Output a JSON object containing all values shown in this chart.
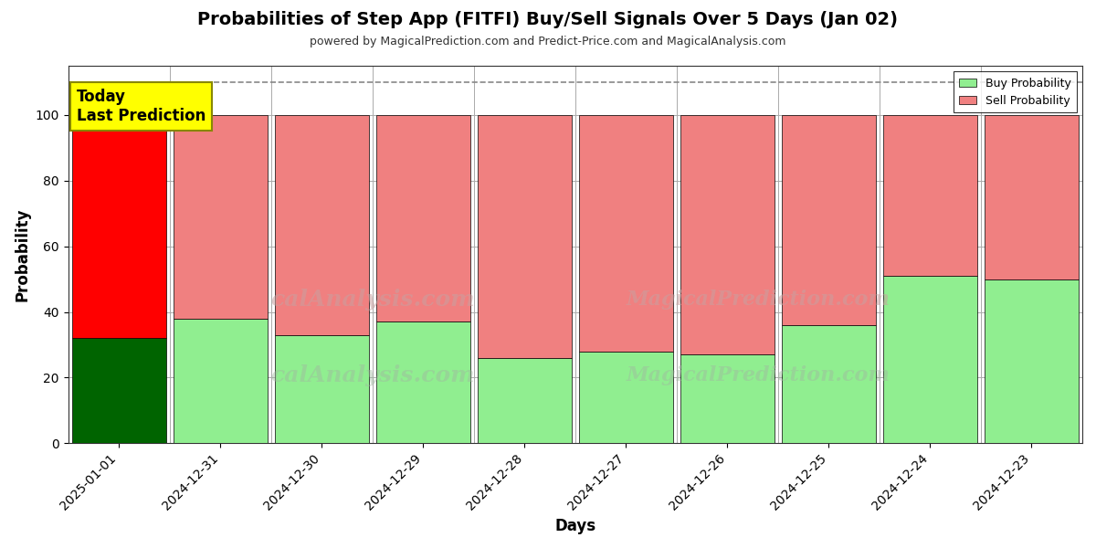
{
  "title": "Probabilities of Step App (FITFI) Buy/Sell Signals Over 5 Days (Jan 02)",
  "subtitle": "powered by MagicalPrediction.com and Predict-Price.com and MagicalAnalysis.com",
  "xlabel": "Days",
  "ylabel": "Probability",
  "categories": [
    "2025-01-01",
    "2024-12-31",
    "2024-12-30",
    "2024-12-29",
    "2024-12-28",
    "2024-12-27",
    "2024-12-26",
    "2024-12-25",
    "2024-12-24",
    "2024-12-23"
  ],
  "buy_values": [
    32,
    38,
    33,
    37,
    26,
    28,
    27,
    36,
    51,
    50
  ],
  "sell_values": [
    68,
    62,
    67,
    63,
    74,
    72,
    73,
    64,
    49,
    50
  ],
  "buy_colors": [
    "#006400",
    "#90EE90",
    "#90EE90",
    "#90EE90",
    "#90EE90",
    "#90EE90",
    "#90EE90",
    "#90EE90",
    "#90EE90",
    "#90EE90"
  ],
  "sell_colors": [
    "#FF0000",
    "#F08080",
    "#F08080",
    "#F08080",
    "#F08080",
    "#F08080",
    "#F08080",
    "#F08080",
    "#F08080",
    "#F08080"
  ],
  "today_label_line1": "Today",
  "today_label_line2": "Last Prediction",
  "today_label_bg": "#FFFF00",
  "dashed_line_y": 110,
  "ylim": [
    0,
    115
  ],
  "yticks": [
    0,
    20,
    40,
    60,
    80,
    100
  ],
  "legend_buy_color": "#90EE90",
  "legend_sell_color": "#F08080",
  "watermark_text1": "calAnalysis.com",
  "watermark_text2": "MagicalPrediction.com",
  "background_color": "#ffffff",
  "grid_color": "#aaaaaa",
  "bar_edge_color": "#000000",
  "bar_width": 0.93
}
